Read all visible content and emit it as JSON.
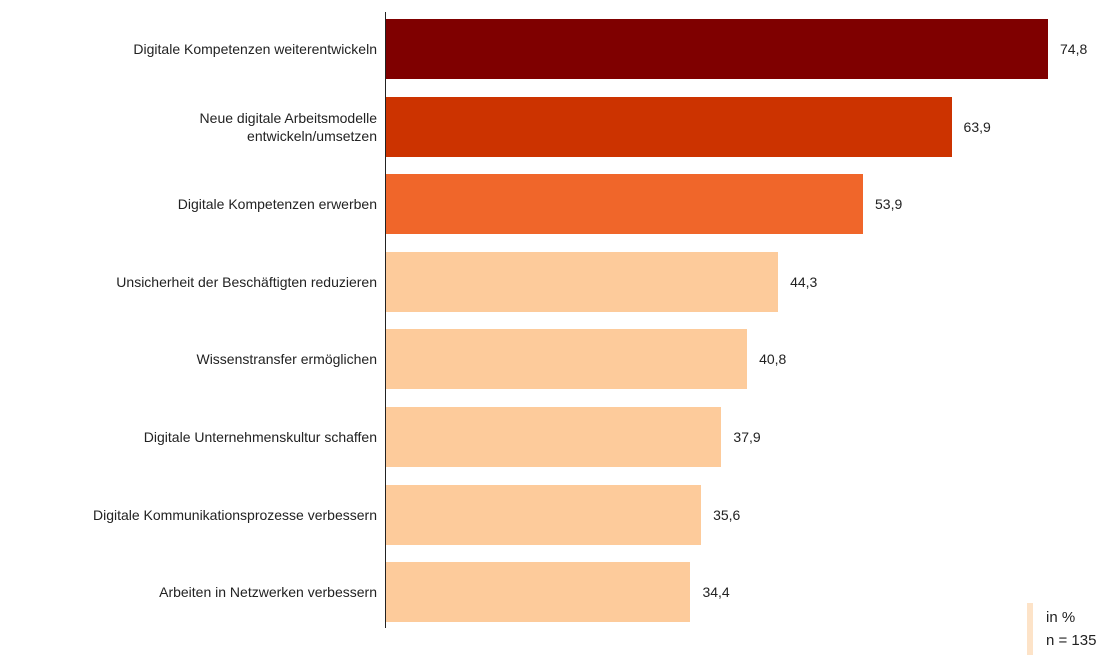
{
  "chart_data": {
    "type": "bar",
    "orientation": "horizontal",
    "categories": [
      "Digitale Kompetenzen weiterentwickeln",
      "Neue digitale Arbeitsmodelle\nentwickeln/umsetzen",
      "Digitale Kompetenzen erwerben",
      "Unsicherheit der Beschäftigten reduzieren",
      "Wissenstransfer ermöglichen",
      "Digitale Unternehmenskultur schaffen",
      "Digitale Kommunikationsprozesse verbessern",
      "Arbeiten in Netzwerken verbessern"
    ],
    "values": [
      74.8,
      63.9,
      53.9,
      44.3,
      40.8,
      37.9,
      35.6,
      34.4
    ],
    "value_labels": [
      "74,8",
      "63,9",
      "53,9",
      "44,3",
      "40,8",
      "37,9",
      "35,6",
      "34,4"
    ],
    "colors": [
      "#7f0000",
      "#cc3300",
      "#f0662a",
      "#fdcb9b",
      "#fdcb9b",
      "#fdcb9b",
      "#fdcb9b",
      "#fdcb9b"
    ],
    "annotations": [
      "in %",
      "n = 135"
    ]
  }
}
